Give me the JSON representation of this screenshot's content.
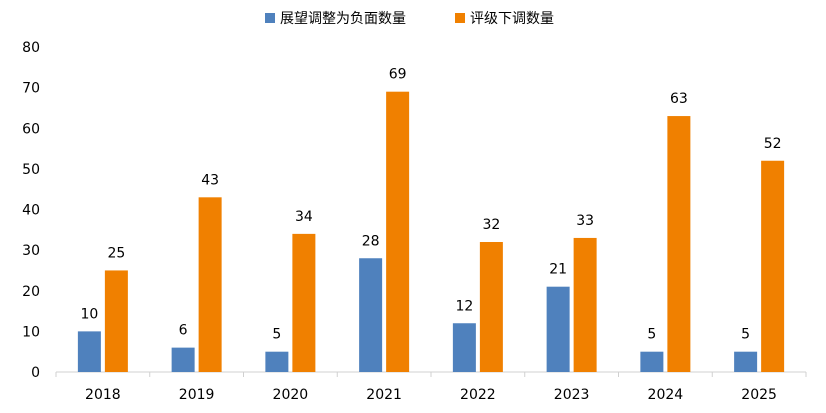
{
  "chart_data": {
    "type": "bar",
    "title": "",
    "xlabel": "",
    "ylabel": "",
    "categories": [
      "2018",
      "2019",
      "2020",
      "2021",
      "2022",
      "2023",
      "2024",
      "2025"
    ],
    "series": [
      {
        "name": "展望调整为负面数量",
        "color": "#4F81BD",
        "values": [
          10,
          6,
          5,
          28,
          12,
          21,
          5,
          5
        ]
      },
      {
        "name": "评级下调数量",
        "color": "#F08000",
        "values": [
          25,
          43,
          34,
          69,
          32,
          33,
          63,
          52
        ]
      }
    ],
    "ylim": [
      0,
      80
    ],
    "yticks": [
      0,
      10,
      20,
      30,
      40,
      50,
      60,
      70,
      80
    ],
    "grid": false,
    "legend_position": "top-center",
    "data_labels": true
  }
}
